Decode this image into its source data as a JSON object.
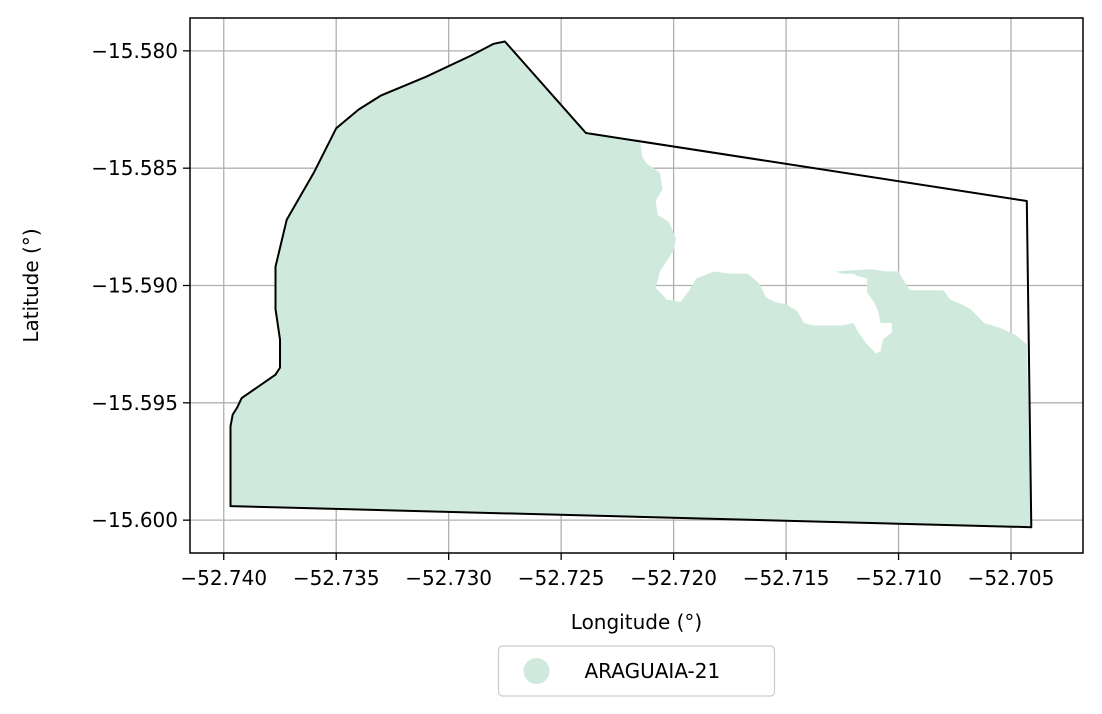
{
  "chart_data": {
    "type": "map",
    "xlabel": "Longitude (°)",
    "ylabel": "Latitude (°)",
    "xlim": [
      -52.7415,
      -52.7018
    ],
    "ylim": [
      -15.6014,
      -15.5786
    ],
    "grid": true,
    "x_ticks": [
      {
        "value": -52.74,
        "label": "−52.740"
      },
      {
        "value": -52.735,
        "label": "−52.735"
      },
      {
        "value": -52.73,
        "label": "−52.730"
      },
      {
        "value": -52.725,
        "label": "−52.725"
      },
      {
        "value": -52.72,
        "label": "−52.720"
      },
      {
        "value": -52.715,
        "label": "−52.715"
      },
      {
        "value": -52.71,
        "label": "−52.710"
      },
      {
        "value": -52.705,
        "label": "−52.705"
      }
    ],
    "y_ticks": [
      {
        "value": -15.58,
        "label": "−15.580"
      },
      {
        "value": -15.585,
        "label": "−15.585"
      },
      {
        "value": -15.59,
        "label": "−15.590"
      },
      {
        "value": -15.595,
        "label": "−15.595"
      },
      {
        "value": -15.6,
        "label": "−15.600"
      }
    ],
    "boundary": {
      "stroke": "#000000",
      "coords": [
        [
          -52.7397,
          -15.5994
        ],
        [
          -52.7397,
          -15.596
        ],
        [
          -52.7396,
          -15.5955
        ],
        [
          -52.7394,
          -15.5952
        ],
        [
          -52.7392,
          -15.5948
        ],
        [
          -52.7377,
          -15.5938
        ],
        [
          -52.7375,
          -15.5935
        ],
        [
          -52.7375,
          -15.5923
        ],
        [
          -52.7377,
          -15.591
        ],
        [
          -52.7377,
          -15.5892
        ],
        [
          -52.7372,
          -15.5872
        ],
        [
          -52.736,
          -15.5852
        ],
        [
          -52.735,
          -15.5833
        ],
        [
          -52.734,
          -15.5825
        ],
        [
          -52.733,
          -15.5819
        ],
        [
          -52.731,
          -15.5811
        ],
        [
          -52.729,
          -15.5802
        ],
        [
          -52.728,
          -15.5797
        ],
        [
          -52.7275,
          -15.5796
        ],
        [
          -52.7239,
          -15.5835
        ],
        [
          -52.7043,
          -15.5864
        ],
        [
          -52.7041,
          -15.6003
        ],
        [
          -52.7397,
          -15.5994
        ]
      ]
    },
    "series": [
      {
        "name": "ARAGUAIA-21",
        "color": "#cfeadd",
        "coords": [
          [
            -52.7397,
            -15.5994
          ],
          [
            -52.7397,
            -15.596
          ],
          [
            -52.7396,
            -15.5955
          ],
          [
            -52.7394,
            -15.5952
          ],
          [
            -52.7392,
            -15.5948
          ],
          [
            -52.7377,
            -15.5938
          ],
          [
            -52.7375,
            -15.5935
          ],
          [
            -52.7375,
            -15.5923
          ],
          [
            -52.7377,
            -15.591
          ],
          [
            -52.7377,
            -15.5892
          ],
          [
            -52.7372,
            -15.5872
          ],
          [
            -52.736,
            -15.5852
          ],
          [
            -52.735,
            -15.5833
          ],
          [
            -52.734,
            -15.5825
          ],
          [
            -52.733,
            -15.5819
          ],
          [
            -52.731,
            -15.5811
          ],
          [
            -52.729,
            -15.5802
          ],
          [
            -52.728,
            -15.5797
          ],
          [
            -52.7275,
            -15.5796
          ],
          [
            -52.7239,
            -15.5835
          ],
          [
            -52.7215,
            -15.5838
          ],
          [
            -52.7214,
            -15.5845
          ],
          [
            -52.7212,
            -15.5848
          ],
          [
            -52.7206,
            -15.5852
          ],
          [
            -52.7205,
            -15.5859
          ],
          [
            -52.7208,
            -15.5864
          ],
          [
            -52.7207,
            -15.587
          ],
          [
            -52.7202,
            -15.5873
          ],
          [
            -52.7199,
            -15.588
          ],
          [
            -52.72,
            -15.5885
          ],
          [
            -52.7206,
            -15.5894
          ],
          [
            -52.7208,
            -15.5901
          ],
          [
            -52.7203,
            -15.5906
          ],
          [
            -52.7197,
            -15.5907
          ],
          [
            -52.7193,
            -15.5902
          ],
          [
            -52.719,
            -15.5897
          ],
          [
            -52.7182,
            -15.5894
          ],
          [
            -52.7175,
            -15.5895
          ],
          [
            -52.7167,
            -15.5895
          ],
          [
            -52.7162,
            -15.5899
          ],
          [
            -52.7159,
            -15.5905
          ],
          [
            -52.7155,
            -15.5907
          ],
          [
            -52.715,
            -15.5908
          ],
          [
            -52.7145,
            -15.5911
          ],
          [
            -52.7142,
            -15.5916
          ],
          [
            -52.7138,
            -15.5917
          ],
          [
            -52.713,
            -15.5917
          ],
          [
            -52.7125,
            -15.5917
          ],
          [
            -52.712,
            -15.5916
          ],
          [
            -52.7118,
            -15.592
          ],
          [
            -52.7114,
            -15.5925
          ],
          [
            -52.711,
            -15.5929
          ],
          [
            -52.7108,
            -15.5928
          ],
          [
            -52.7107,
            -15.5923
          ],
          [
            -52.7103,
            -15.592
          ],
          [
            -52.7103,
            -15.5916
          ],
          [
            -52.7108,
            -15.5916
          ],
          [
            -52.7109,
            -15.5911
          ],
          [
            -52.7111,
            -15.5907
          ],
          [
            -52.7114,
            -15.5903
          ],
          [
            -52.7114,
            -15.5897
          ],
          [
            -52.7118,
            -15.5896
          ],
          [
            -52.712,
            -15.5895
          ],
          [
            -52.7125,
            -15.5895
          ],
          [
            -52.7128,
            -15.5894
          ],
          [
            -52.7112,
            -15.5893
          ],
          [
            -52.7106,
            -15.5894
          ],
          [
            -52.71,
            -15.5894
          ],
          [
            -52.7099,
            -15.5896
          ],
          [
            -52.7095,
            -15.5902
          ],
          [
            -52.709,
            -15.5902
          ],
          [
            -52.7085,
            -15.5902
          ],
          [
            -52.708,
            -15.5902
          ],
          [
            -52.7077,
            -15.5906
          ],
          [
            -52.7072,
            -15.5908
          ],
          [
            -52.7068,
            -15.591
          ],
          [
            -52.7065,
            -15.5913
          ],
          [
            -52.7062,
            -15.5916
          ],
          [
            -52.7055,
            -15.5918
          ],
          [
            -52.7048,
            -15.5921
          ],
          [
            -52.7043,
            -15.5925
          ],
          [
            -52.7041,
            -15.6003
          ],
          [
            -52.7397,
            -15.5994
          ]
        ]
      }
    ],
    "legend": {
      "placement": "bottom-center",
      "entries": [
        "ARAGUAIA-21"
      ]
    }
  }
}
